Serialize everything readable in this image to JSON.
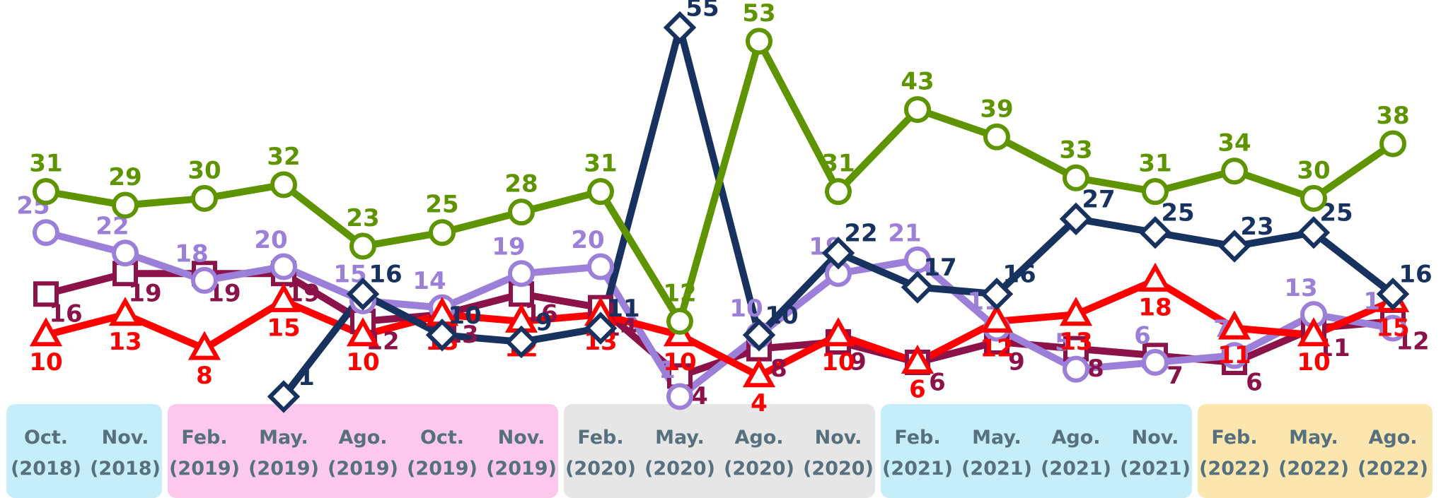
{
  "chart_data": {
    "type": "line",
    "categories": [
      "Oct. (2018)",
      "Nov. (2018)",
      "Feb. (2019)",
      "May. (2019)",
      "Ago. (2019)",
      "Oct. (2019)",
      "Nov. (2019)",
      "Feb. (2020)",
      "May. (2020)",
      "Ago. (2020)",
      "Nov. (2020)",
      "Feb. (2021)",
      "May. (2021)",
      "Ago. (2021)",
      "Nov. (2021)",
      "Feb. (2022)",
      "May. (2022)",
      "Ago. (2022)"
    ],
    "ylim": [
      0,
      58
    ],
    "series": [
      {
        "color": "#8b1349",
        "marker": "square",
        "values": [
          16,
          19,
          19,
          19,
          12,
          13,
          16,
          14,
          4,
          8,
          9,
          6,
          9,
          8,
          7,
          6,
          11,
          12
        ]
      },
      {
        "color": "#9b7fd8",
        "marker": "circle",
        "values": [
          25,
          22,
          18,
          20,
          15,
          14,
          19,
          20,
          1,
          10,
          19,
          21,
          11,
          5,
          6,
          7,
          13,
          11
        ]
      },
      {
        "color": "#ff0000",
        "marker": "triangle",
        "values": [
          10,
          13,
          8,
          15,
          10,
          13,
          12,
          13,
          10,
          4,
          10,
          6,
          12,
          13,
          18,
          11,
          10,
          15
        ]
      },
      {
        "color": "#17325e",
        "marker": "diamond",
        "values": [
          null,
          null,
          null,
          1,
          16,
          10,
          9,
          11,
          55,
          10,
          22,
          17,
          16,
          27,
          25,
          23,
          25,
          16
        ]
      },
      {
        "color": "#5e9400",
        "marker": "circle",
        "values": [
          31,
          29,
          30,
          32,
          23,
          25,
          28,
          31,
          12,
          53,
          31,
          43,
          39,
          33,
          31,
          34,
          30,
          38
        ]
      }
    ]
  }
}
